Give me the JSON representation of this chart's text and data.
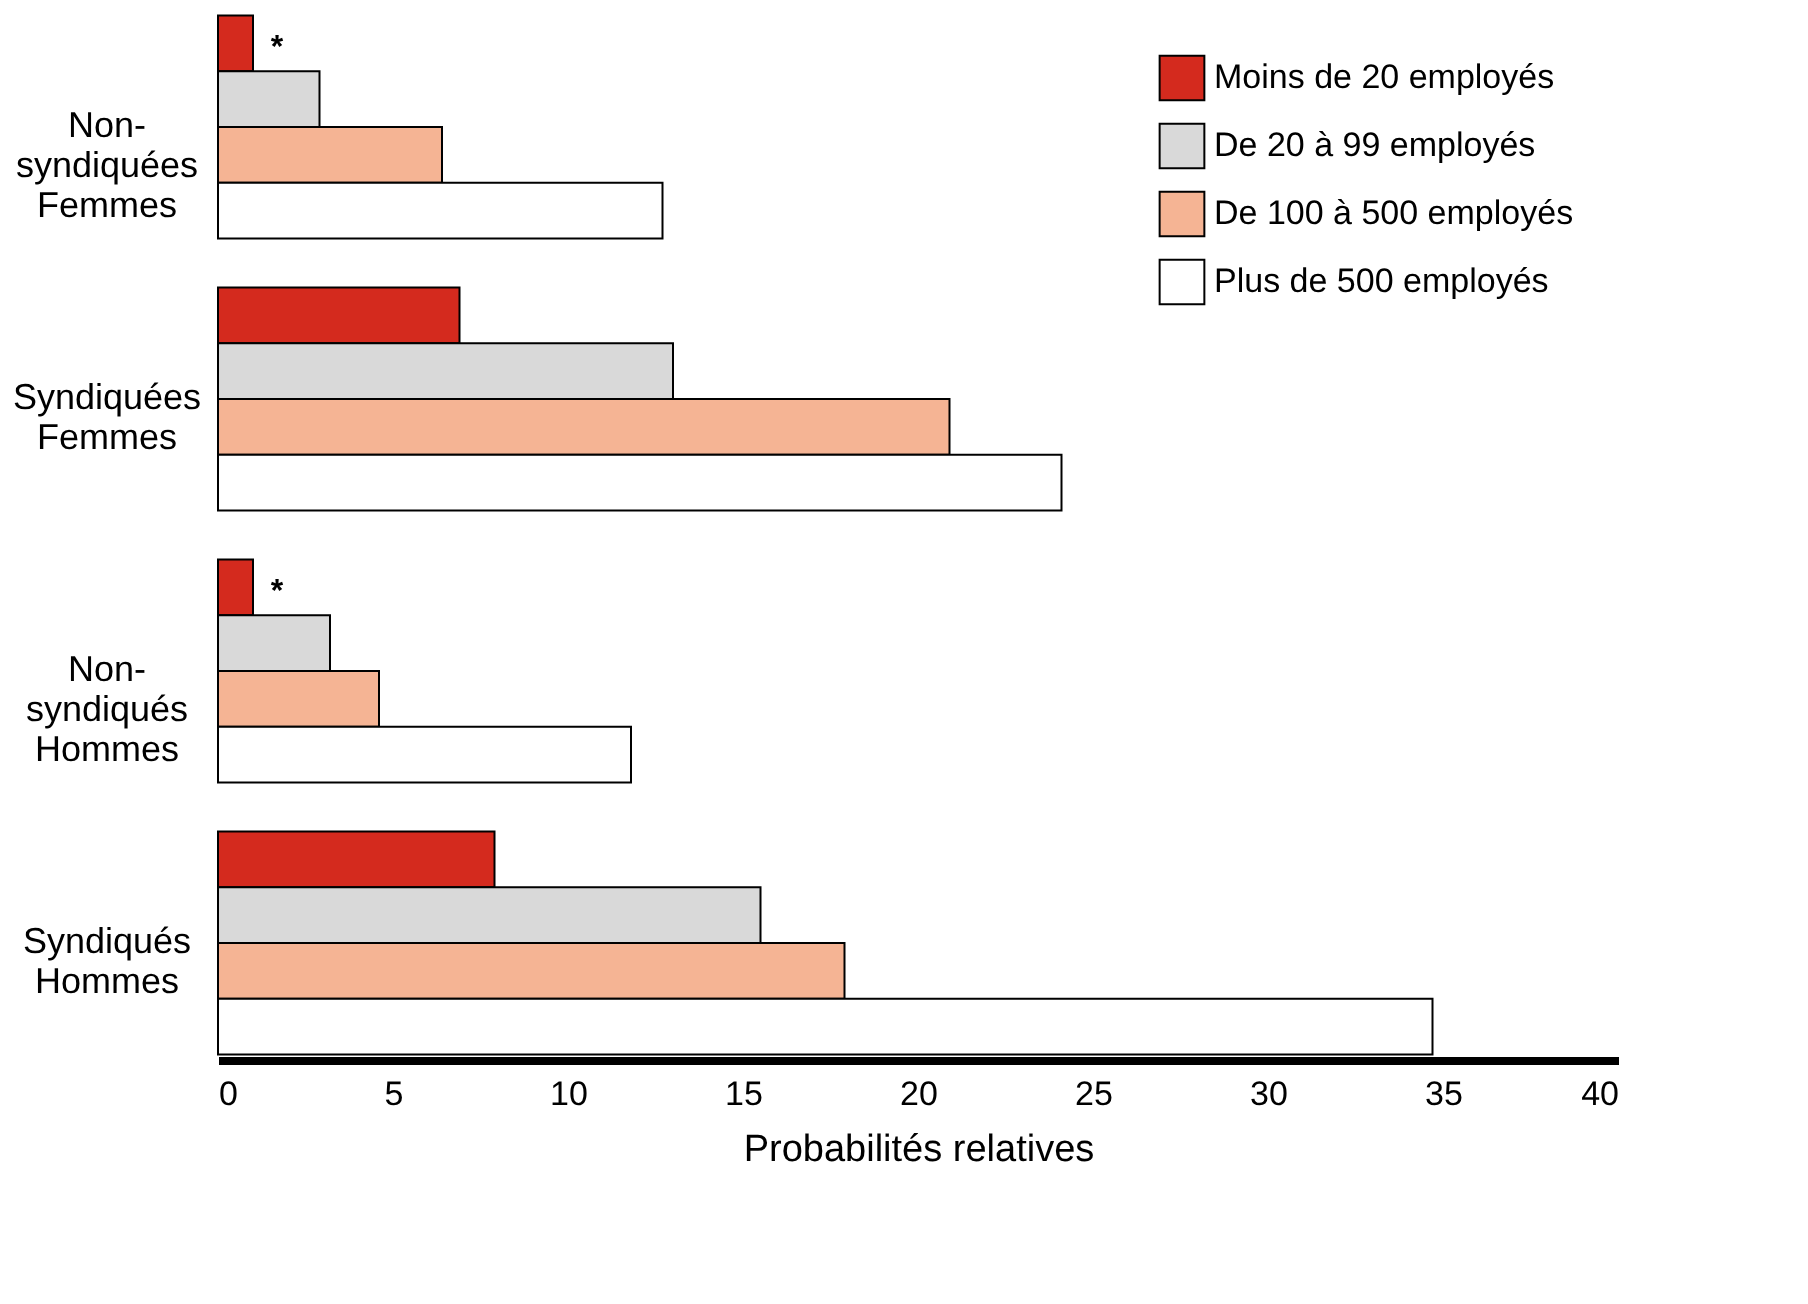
{
  "chart_data": {
    "type": "bar",
    "orientation": "horizontal",
    "xlabel": "Probabilités relatives",
    "categories": [
      "Non-\nsyndiquées\nFemmes",
      "Syndiquées\nFemmes",
      "Non-\nsyndiqués\nHommes",
      "Syndiqués\nHommes"
    ],
    "series": [
      {
        "name": "Moins de 20 employés",
        "color": "#d42a1e",
        "values": [
          1.0,
          6.9,
          1.0,
          7.9
        ]
      },
      {
        "name": "De 20 à 99 employés",
        "color": "#d9d9d9",
        "values": [
          2.9,
          13.0,
          3.2,
          15.5
        ]
      },
      {
        "name": "De 100 à 500 employés",
        "color": "#f5b494",
        "values": [
          6.4,
          20.9,
          4.6,
          17.9
        ]
      },
      {
        "name": "Plus de 500 employés",
        "color": "#ffffff",
        "values": [
          12.7,
          24.1,
          11.8,
          34.7
        ]
      }
    ],
    "xlim": [
      0,
      40
    ],
    "xticks": [
      0,
      5,
      10,
      15,
      20,
      25,
      30,
      35,
      40
    ],
    "grid": false,
    "legend": "top right",
    "annotations": [
      "*",
      "*"
    ]
  }
}
